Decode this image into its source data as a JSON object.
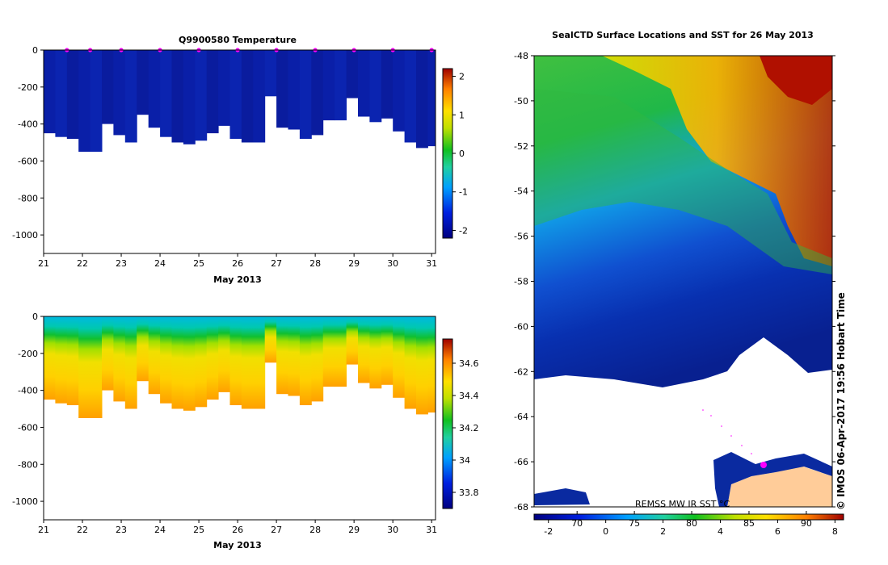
{
  "chart_data": [
    {
      "type": "heatmap",
      "title": "Q9900580  Temperature",
      "xlabel": "May 2013",
      "ylabel": "",
      "x_ticks": [
        "21",
        "22",
        "23",
        "24",
        "25",
        "26",
        "27",
        "28",
        "29",
        "30",
        "31"
      ],
      "y_ticks": [
        "0",
        "-200",
        "-400",
        "-600",
        "-800",
        "-1000"
      ],
      "xlim": [
        21,
        31.1
      ],
      "ylim": [
        -1100,
        0
      ],
      "profile_markers_days": [
        21.6,
        22.2,
        23.0,
        24.0,
        25.0,
        26.0,
        27.0,
        28.0,
        29.0,
        30.0,
        31.0
      ],
      "profile_days": [
        21.0,
        21.3,
        21.6,
        21.9,
        22.2,
        22.5,
        22.8,
        23.1,
        23.4,
        23.7,
        24.0,
        24.3,
        24.6,
        24.9,
        25.2,
        25.5,
        25.8,
        26.1,
        26.4,
        26.7,
        27.0,
        27.3,
        27.6,
        27.9,
        28.2,
        28.5,
        28.8,
        29.1,
        29.4,
        29.7,
        30.0,
        30.3,
        30.6,
        30.9
      ],
      "profile_max_depth_m": [
        -450,
        -470,
        -480,
        -550,
        -550,
        -400,
        -460,
        -500,
        -350,
        -420,
        -470,
        -500,
        -510,
        -490,
        -450,
        -410,
        -480,
        -500,
        -500,
        -250,
        -420,
        -430,
        -480,
        -460,
        -380,
        -380,
        -260,
        -360,
        -390,
        -370,
        -440,
        -500,
        -530,
        -520
      ],
      "colorbar": {
        "label_ticks": [
          "2",
          "1",
          "0",
          "-1",
          "-2"
        ],
        "min": -2.2,
        "max": 2.2
      }
    },
    {
      "type": "heatmap",
      "title": "",
      "xlabel": "May 2013",
      "ylabel": "",
      "x_ticks": [
        "21",
        "22",
        "23",
        "24",
        "25",
        "26",
        "27",
        "28",
        "29",
        "30",
        "31"
      ],
      "y_ticks": [
        "0",
        "-200",
        "-400",
        "-600",
        "-800",
        "-1000"
      ],
      "xlim": [
        21,
        31.1
      ],
      "ylim": [
        -1100,
        0
      ],
      "profile_days": [
        21.0,
        21.3,
        21.6,
        21.9,
        22.2,
        22.5,
        22.8,
        23.1,
        23.4,
        23.7,
        24.0,
        24.3,
        24.6,
        24.9,
        25.2,
        25.5,
        25.8,
        26.1,
        26.4,
        26.7,
        27.0,
        27.3,
        27.6,
        27.9,
        28.2,
        28.5,
        28.8,
        29.1,
        29.4,
        29.7,
        30.0,
        30.3,
        30.6,
        30.9
      ],
      "profile_max_depth_m": [
        -450,
        -470,
        -480,
        -550,
        -550,
        -400,
        -460,
        -500,
        -350,
        -420,
        -470,
        -500,
        -510,
        -490,
        -450,
        -410,
        -480,
        -500,
        -500,
        -250,
        -420,
        -430,
        -480,
        -460,
        -380,
        -380,
        -260,
        -360,
        -390,
        -370,
        -440,
        -500,
        -530,
        -520
      ],
      "colorbar": {
        "label_ticks": [
          "34.6",
          "34.4",
          "34.2",
          "34",
          "33.8"
        ],
        "min": 33.7,
        "max": 34.75
      }
    },
    {
      "type": "heatmap",
      "title": "SealCTD Surface Locations and SST for 26 May 2013",
      "y_ticks": [
        "-48",
        "-50",
        "-52",
        "-54",
        "-56",
        "-58",
        "-60",
        "-62",
        "-64",
        "-66",
        "-68"
      ],
      "ylim": [
        -68,
        -48
      ],
      "colorbar": {
        "tick_labels": [
          "-2",
          "0",
          "2",
          "4",
          "6",
          "8"
        ],
        "secondary_labels": [
          "70",
          "75",
          "80",
          "85",
          "90"
        ],
        "min": -2.5,
        "max": 8.3
      },
      "annotation": "REMSS MW IR SST °C",
      "timestamp": "© IMOS 06-Apr-2017 19:56 Hobart Time"
    }
  ]
}
